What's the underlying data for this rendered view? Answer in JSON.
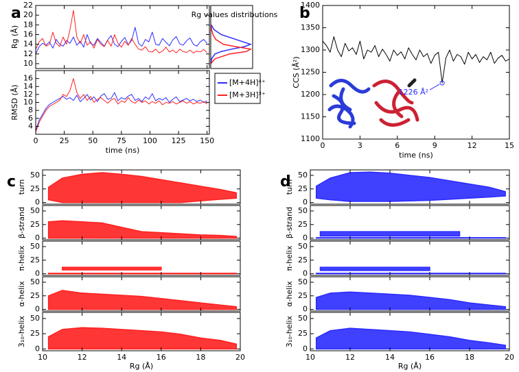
{
  "panel_labels": [
    "a",
    "b",
    "c",
    "d"
  ],
  "chart_data": [
    {
      "type": "line",
      "ylabel": "Rg (Å)",
      "xlim": [
        0,
        152
      ],
      "xticks": [
        0,
        25,
        50,
        75,
        100,
        125,
        150
      ],
      "ylim": [
        9,
        22
      ],
      "yticks": [
        10,
        12,
        14,
        16,
        18,
        20,
        22
      ],
      "x": [
        0,
        3,
        6,
        9,
        12,
        15,
        18,
        21,
        24,
        27,
        30,
        33,
        36,
        39,
        42,
        45,
        48,
        51,
        54,
        57,
        60,
        63,
        66,
        69,
        72,
        75,
        78,
        81,
        84,
        87,
        90,
        93,
        96,
        99,
        102,
        105,
        108,
        111,
        114,
        117,
        120,
        123,
        126,
        129,
        132,
        135,
        138,
        141,
        144,
        147,
        150
      ],
      "series": [
        {
          "color": "#2b2bff",
          "values": [
            12.0,
            13.5,
            14.2,
            13.8,
            14.5,
            13.2,
            15.0,
            14.0,
            13.6,
            14.8,
            14.2,
            15.5,
            13.8,
            14.6,
            13.4,
            16.0,
            14.2,
            13.8,
            15.2,
            14.4,
            13.6,
            14.9,
            15.8,
            14.0,
            13.5,
            14.6,
            15.4,
            13.9,
            14.8,
            17.5,
            14.2,
            13.6,
            15.0,
            14.5,
            16.5,
            14.0,
            13.8,
            15.2,
            14.4,
            13.7,
            14.9,
            15.6,
            14.1,
            13.8,
            14.7,
            15.3,
            14.0,
            13.6,
            14.5,
            15.0,
            14.2
          ]
        },
        {
          "color": "#ff2020",
          "values": [
            13.0,
            14.5,
            15.2,
            13.6,
            14.0,
            16.5,
            14.2,
            13.5,
            15.5,
            14.0,
            17.0,
            21.0,
            15.5,
            14.2,
            16.0,
            13.8,
            14.5,
            13.2,
            15.0,
            14.0,
            13.5,
            14.8,
            13.6,
            16.0,
            14.2,
            13.4,
            14.6,
            13.8,
            15.2,
            14.0,
            13.0,
            12.8,
            13.5,
            12.5,
            12.4,
            13.0,
            12.2,
            12.6,
            13.4,
            12.4,
            12.8,
            12.2,
            13.0,
            12.5,
            12.3,
            12.8,
            12.2,
            12.6,
            12.4,
            12.9,
            12.3
          ]
        }
      ]
    },
    {
      "type": "density",
      "title": "Rg values distributions",
      "xlim": [
        0,
        100
      ],
      "y": [
        10,
        11,
        12,
        12.5,
        13,
        13.5,
        14,
        15,
        16,
        17,
        18
      ],
      "series": [
        {
          "color": "#2b2bff",
          "values": [
            0,
            2,
            10,
            25,
            50,
            80,
            95,
            60,
            25,
            8,
            1
          ]
        },
        {
          "color": "#ff2020",
          "values": [
            0,
            10,
            45,
            85,
            95,
            60,
            30,
            12,
            5,
            2,
            0
          ]
        }
      ]
    },
    {
      "type": "line",
      "ylabel": "RMSD (Å)",
      "xlabel": "time (ns)",
      "xlim": [
        0,
        152
      ],
      "xticks": [
        0,
        25,
        50,
        75,
        100,
        125,
        150
      ],
      "ylim": [
        2,
        18
      ],
      "yticks": [
        4,
        6,
        8,
        10,
        12,
        14,
        16
      ],
      "legend": "right",
      "x": [
        0,
        3,
        6,
        9,
        12,
        15,
        18,
        21,
        24,
        27,
        30,
        33,
        36,
        39,
        42,
        45,
        48,
        51,
        54,
        57,
        60,
        63,
        66,
        69,
        72,
        75,
        78,
        81,
        84,
        87,
        90,
        93,
        96,
        99,
        102,
        105,
        108,
        111,
        114,
        117,
        120,
        123,
        126,
        129,
        132,
        135,
        138,
        141,
        144,
        147,
        150
      ],
      "series": [
        {
          "name": "[M+4H]⁴⁺",
          "color": "#2b2bff",
          "values": [
            3.0,
            5.5,
            7.0,
            8.5,
            9.5,
            10.0,
            10.5,
            11.0,
            11.5,
            10.8,
            11.2,
            10.5,
            11.8,
            10.2,
            11.0,
            12.0,
            10.6,
            11.4,
            10.2,
            11.6,
            12.2,
            10.8,
            11.0,
            12.5,
            10.4,
            11.2,
            10.8,
            11.6,
            12.0,
            10.5,
            11.0,
            10.2,
            11.4,
            10.8,
            12.2,
            10.4,
            11.0,
            10.6,
            11.2,
            10.0,
            10.8,
            11.4,
            10.2,
            10.6,
            11.0,
            10.4,
            10.8,
            10.2,
            10.6,
            10.0,
            10.4
          ]
        },
        {
          "name": "[M+3H]³⁺",
          "color": "#ff2020",
          "values": [
            2.5,
            5.0,
            6.5,
            8.0,
            9.0,
            9.5,
            10.0,
            10.5,
            12.0,
            11.5,
            13.0,
            16.0,
            12.5,
            11.0,
            12.0,
            10.5,
            11.5,
            10.0,
            10.8,
            11.2,
            10.5,
            9.8,
            10.6,
            11.0,
            9.6,
            10.4,
            10.0,
            11.2,
            10.2,
            9.8,
            10.6,
            10.0,
            10.4,
            9.6,
            10.2,
            9.8,
            10.4,
            9.4,
            10.0,
            9.8,
            10.2,
            9.6,
            10.0,
            10.4,
            9.8,
            10.2,
            9.6,
            10.0,
            9.8,
            10.2,
            9.6
          ]
        }
      ]
    },
    {
      "type": "line",
      "ylabel": "CCS (Å²)",
      "xlabel": "time (ns)",
      "xlim": [
        0,
        15
      ],
      "xticks": [
        0,
        3,
        6,
        9,
        12,
        15
      ],
      "ylim": [
        1100,
        1400
      ],
      "yticks": [
        1100,
        1150,
        1200,
        1250,
        1300,
        1350,
        1400
      ],
      "x": [
        0,
        0.3,
        0.6,
        0.9,
        1.2,
        1.5,
        1.8,
        2.1,
        2.4,
        2.7,
        3,
        3.3,
        3.6,
        3.9,
        4.2,
        4.5,
        4.8,
        5.1,
        5.4,
        5.7,
        6,
        6.3,
        6.6,
        6.9,
        7.2,
        7.5,
        7.8,
        8.1,
        8.4,
        8.7,
        9,
        9.3,
        9.6,
        9.9,
        10.2,
        10.5,
        10.8,
        11.1,
        11.4,
        11.7,
        12,
        12.3,
        12.6,
        12.9,
        13.2,
        13.5,
        13.8,
        14.1,
        14.4,
        14.7,
        15
      ],
      "series": [
        {
          "color": "#000000",
          "values": [
            1320,
            1310,
            1295,
            1330,
            1300,
            1285,
            1315,
            1298,
            1305,
            1290,
            1320,
            1280,
            1300,
            1295,
            1310,
            1285,
            1302,
            1290,
            1275,
            1300,
            1288,
            1296,
            1280,
            1305,
            1290,
            1278,
            1300,
            1285,
            1292,
            1270,
            1288,
            1295,
            1226,
            1282,
            1300,
            1275,
            1290,
            1285,
            1268,
            1295,
            1280,
            1290,
            1272,
            1285,
            1278,
            1295,
            1270,
            1282,
            1288,
            1275,
            1280
          ]
        }
      ],
      "annotation": {
        "text": "1226 Å²",
        "x": 9.6,
        "y": 1226,
        "color": "#2b2bff"
      }
    },
    {
      "type": "scatter",
      "xlabel": "Rg (Å)",
      "xlim": [
        10,
        20
      ],
      "xticks": [
        10,
        12,
        14,
        16,
        18,
        20
      ],
      "color": "#ff2020",
      "subplots": [
        {
          "ylabel": "turn",
          "ylim": [
            -3,
            60
          ],
          "yticks": [
            0,
            25,
            50
          ],
          "bands": [
            {
              "x": [
                10.3,
                11,
                12,
                13,
                14,
                15,
                16,
                17,
                18,
                19,
                19.8
              ],
              "upper": [
                28,
                45,
                52,
                55,
                52,
                48,
                42,
                36,
                30,
                24,
                18
              ],
              "lower": [
                5,
                0,
                0,
                0,
                0,
                0,
                0,
                0,
                3,
                6,
                8
              ]
            }
          ]
        },
        {
          "ylabel": "β-strand",
          "ylim": [
            -3,
            60
          ],
          "yticks": [
            0,
            25,
            50
          ],
          "bands": [
            {
              "x": [
                10.3,
                11,
                12,
                13,
                14,
                15,
                16,
                17,
                18,
                19,
                19.8
              ],
              "upper": [
                30,
                32,
                30,
                28,
                20,
                12,
                10,
                8,
                6,
                5,
                3
              ],
              "lower": [
                0,
                0,
                0,
                0,
                0,
                0,
                0,
                0,
                0,
                0,
                0
              ]
            }
          ]
        },
        {
          "ylabel": "π-helix",
          "ylim": [
            -3,
            60
          ],
          "yticks": [
            0,
            25,
            50
          ],
          "bands": [
            {
              "x": [
                10.3,
                19.8
              ],
              "upper": [
                1,
                1
              ],
              "lower": [
                0,
                0
              ]
            },
            {
              "x": [
                11,
                16
              ],
              "upper": [
                12,
                12
              ],
              "lower": [
                7,
                7
              ]
            }
          ]
        },
        {
          "ylabel": "α-helix",
          "ylim": [
            -3,
            60
          ],
          "yticks": [
            0,
            25,
            50
          ],
          "bands": [
            {
              "x": [
                10.3,
                11,
                12,
                13,
                14,
                15,
                16,
                17,
                18,
                19,
                19.8
              ],
              "upper": [
                25,
                35,
                30,
                28,
                26,
                24,
                20,
                16,
                12,
                8,
                5
              ],
              "lower": [
                0,
                0,
                0,
                0,
                0,
                0,
                0,
                0,
                0,
                0,
                0
              ]
            }
          ]
        },
        {
          "ylabel": "3₁₀-helix",
          "ylim": [
            -3,
            60
          ],
          "yticks": [
            0,
            25,
            50
          ],
          "bands": [
            {
              "x": [
                10.3,
                11,
                12,
                13,
                14,
                15,
                16,
                17,
                18,
                19,
                19.8
              ],
              "upper": [
                20,
                32,
                35,
                34,
                32,
                30,
                28,
                24,
                18,
                14,
                8
              ],
              "lower": [
                0,
                0,
                0,
                0,
                0,
                0,
                0,
                0,
                0,
                0,
                0
              ]
            }
          ]
        }
      ]
    },
    {
      "type": "scatter",
      "xlabel": "Rg (Å)",
      "xlim": [
        10,
        20
      ],
      "xticks": [
        10,
        12,
        14,
        16,
        18,
        20
      ],
      "color": "#2b2bff",
      "subplots": [
        {
          "ylabel": "turn",
          "ylim": [
            -3,
            60
          ],
          "yticks": [
            0,
            25,
            50
          ],
          "bands": [
            {
              "x": [
                10.3,
                11,
                12,
                13,
                14,
                15,
                16,
                17,
                18,
                19,
                19.8
              ],
              "upper": [
                30,
                45,
                55,
                56,
                54,
                50,
                46,
                40,
                34,
                28,
                20
              ],
              "lower": [
                8,
                5,
                2,
                2,
                2,
                3,
                4,
                6,
                8,
                10,
                12
              ]
            }
          ]
        },
        {
          "ylabel": "β-strand",
          "ylim": [
            -3,
            60
          ],
          "yticks": [
            0,
            25,
            50
          ],
          "bands": [
            {
              "x": [
                10.3,
                19.8
              ],
              "upper": [
                1,
                1
              ],
              "lower": [
                0,
                0
              ]
            },
            {
              "x": [
                10.5,
                17.5
              ],
              "upper": [
                12,
                12
              ],
              "lower": [
                4,
                4
              ]
            }
          ]
        },
        {
          "ylabel": "π-helix",
          "ylim": [
            -3,
            60
          ],
          "yticks": [
            0,
            25,
            50
          ],
          "bands": [
            {
              "x": [
                10.3,
                19.8
              ],
              "upper": [
                1,
                1
              ],
              "lower": [
                0,
                0
              ]
            },
            {
              "x": [
                10.5,
                16
              ],
              "upper": [
                12,
                12
              ],
              "lower": [
                6,
                6
              ]
            }
          ]
        },
        {
          "ylabel": "α-helix",
          "ylim": [
            -3,
            60
          ],
          "yticks": [
            0,
            25,
            50
          ],
          "bands": [
            {
              "x": [
                10.3,
                11,
                12,
                13,
                14,
                15,
                16,
                17,
                18,
                19,
                19.8
              ],
              "upper": [
                22,
                30,
                32,
                30,
                28,
                26,
                22,
                18,
                12,
                8,
                5
              ],
              "lower": [
                0,
                0,
                0,
                0,
                0,
                0,
                0,
                0,
                0,
                0,
                0
              ]
            }
          ]
        },
        {
          "ylabel": "3₁₀-helix",
          "ylim": [
            -3,
            60
          ],
          "yticks": [
            0,
            25,
            50
          ],
          "bands": [
            {
              "x": [
                10.3,
                11,
                12,
                13,
                14,
                15,
                16,
                17,
                18,
                19,
                19.8
              ],
              "upper": [
                18,
                30,
                34,
                32,
                30,
                28,
                24,
                20,
                14,
                10,
                6
              ],
              "lower": [
                0,
                0,
                0,
                0,
                0,
                0,
                0,
                0,
                0,
                0,
                0
              ]
            }
          ]
        }
      ]
    }
  ]
}
